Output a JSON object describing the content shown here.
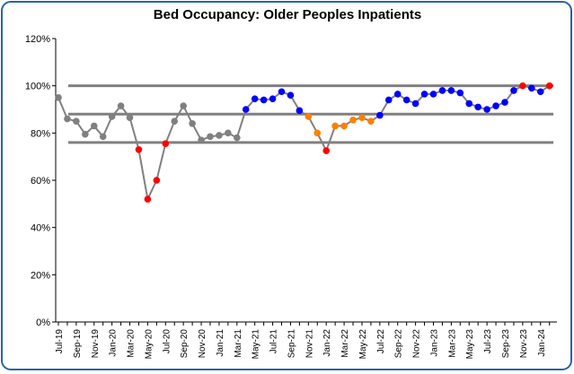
{
  "chart_data": {
    "type": "line",
    "title": "Bed Occupancy: Older Peoples Inpatients",
    "categories": [
      "Jul-19",
      null,
      "Sep-19",
      null,
      "Nov-19",
      null,
      "Jan-20",
      null,
      "Mar-20",
      null,
      "May-20",
      null,
      "Jul-20",
      null,
      "Sep-20",
      null,
      "Nov-20",
      null,
      "Jan-21",
      null,
      "Mar-21",
      null,
      "May-21",
      null,
      "Jul-21",
      null,
      "Sep-21",
      null,
      "Nov-21",
      null,
      "Jan-22",
      null,
      "Mar-22",
      null,
      "May-22",
      null,
      "Jul-22",
      null,
      "Sep-22",
      null,
      "Nov-22",
      null,
      "Jan-23",
      null,
      "Mar-23",
      null,
      "May-23",
      null,
      "Jul-23",
      null,
      "Sep-23",
      null,
      "Nov-23",
      null,
      "Jan-24",
      null
    ],
    "values": [
      95,
      86,
      85,
      79.5,
      83,
      78.5,
      87,
      91.5,
      86.5,
      73,
      52,
      60,
      75.5,
      85,
      91.5,
      84,
      77,
      78.5,
      79,
      80,
      78,
      90,
      94.5,
      94,
      94.5,
      97.5,
      96,
      89.5,
      87,
      80,
      72.5,
      83,
      83,
      85.5,
      86.5,
      85,
      87.5,
      94,
      96.5,
      94,
      92.5,
      96.5,
      96.5,
      98,
      98,
      97,
      92.5,
      91,
      90,
      91.5,
      93,
      98,
      100,
      99,
      97.5,
      100
    ],
    "marker_colors": [
      "#808080",
      "#808080",
      "#808080",
      "#808080",
      "#808080",
      "#808080",
      "#808080",
      "#808080",
      "#808080",
      "#ff0000",
      "#ff0000",
      "#ff0000",
      "#ff0000",
      "#808080",
      "#808080",
      "#808080",
      "#808080",
      "#808080",
      "#808080",
      "#808080",
      "#808080",
      "#0000ff",
      "#0000ff",
      "#0000ff",
      "#0000ff",
      "#0000ff",
      "#0000ff",
      "#0000ff",
      "#ff8000",
      "#ff8000",
      "#ff0000",
      "#ff8000",
      "#ff8000",
      "#ff8000",
      "#ff8000",
      "#ff8000",
      "#0000ff",
      "#0000ff",
      "#0000ff",
      "#0000ff",
      "#0000ff",
      "#0000ff",
      "#0000ff",
      "#0000ff",
      "#0000ff",
      "#0000ff",
      "#0000ff",
      "#0000ff",
      "#0000ff",
      "#0000ff",
      "#0000ff",
      "#0000ff",
      "#ff0000",
      "#0000ff",
      "#0000ff",
      "#ff0000"
    ],
    "line_color": "#808080",
    "reference_lines": [
      100,
      88,
      76
    ],
    "reference_color": "#808080",
    "ylim": [
      0,
      120
    ],
    "yticks": [
      {
        "value": 0,
        "label": "0%"
      },
      {
        "value": 20,
        "label": "20%"
      },
      {
        "value": 40,
        "label": "40%"
      },
      {
        "value": 60,
        "label": "60%"
      },
      {
        "value": 80,
        "label": "80%"
      },
      {
        "value": 100,
        "label": "100%"
      },
      {
        "value": 120,
        "label": "120%"
      }
    ]
  }
}
